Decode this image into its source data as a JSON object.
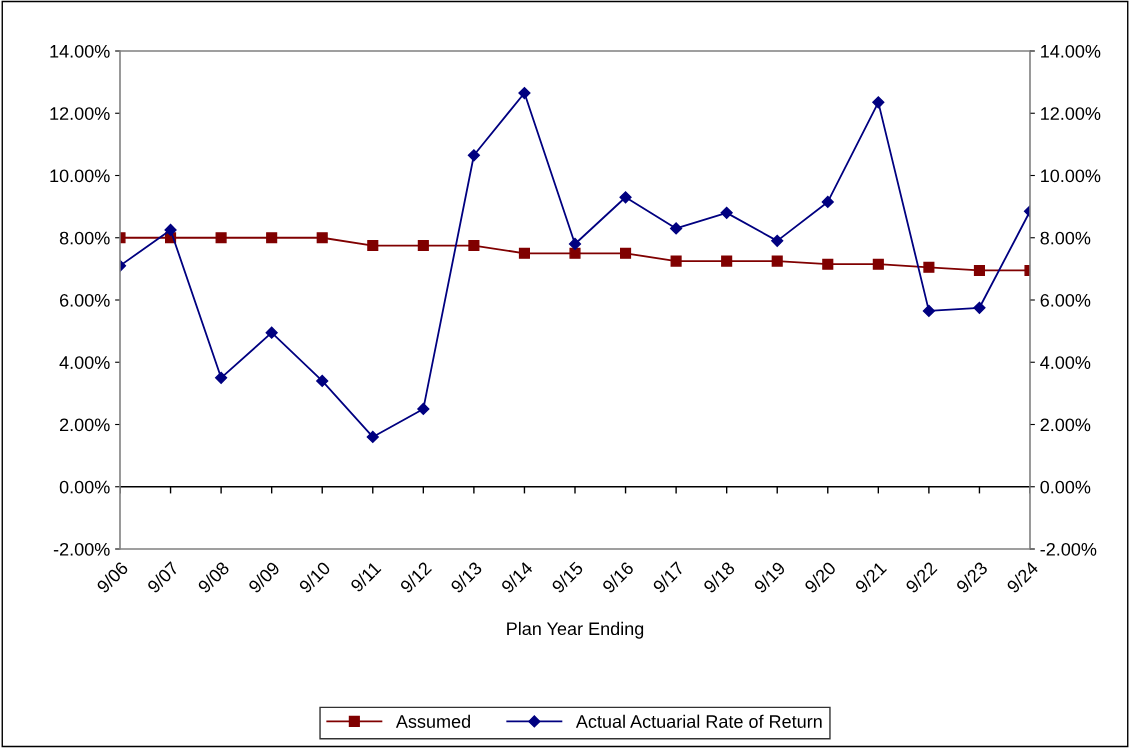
{
  "chart_data": {
    "type": "line",
    "xlabel": "Plan Year Ending",
    "categories": [
      "9/06",
      "9/07",
      "9/08",
      "9/09",
      "9/10",
      "9/11",
      "9/12",
      "9/13",
      "9/14",
      "9/15",
      "9/16",
      "9/17",
      "9/18",
      "9/19",
      "9/20",
      "9/21",
      "9/22",
      "9/23",
      "9/24"
    ],
    "series": [
      {
        "name": "Assumed",
        "color": "#800000",
        "marker": "square",
        "values": [
          8.0,
          8.0,
          8.0,
          8.0,
          8.0,
          7.75,
          7.75,
          7.75,
          7.5,
          7.5,
          7.5,
          7.25,
          7.25,
          7.25,
          7.15,
          7.15,
          7.05,
          6.95,
          6.95
        ]
      },
      {
        "name": "Actual Actuarial Rate of Return",
        "color": "#000080",
        "marker": "diamond",
        "values": [
          7.1,
          8.25,
          3.5,
          4.95,
          3.4,
          1.6,
          2.5,
          10.65,
          12.65,
          7.8,
          9.3,
          8.3,
          8.8,
          7.9,
          9.15,
          12.35,
          5.65,
          5.75,
          8.85
        ]
      }
    ],
    "ylim": [
      -2,
      14
    ],
    "yticks": [
      {
        "value": -2,
        "label": "-2.00%"
      },
      {
        "value": 0,
        "label": "0.00%"
      },
      {
        "value": 2,
        "label": "2.00%"
      },
      {
        "value": 4,
        "label": "4.00%"
      },
      {
        "value": 6,
        "label": "6.00%"
      },
      {
        "value": 8,
        "label": "8.00%"
      },
      {
        "value": 10,
        "label": "10.00%"
      },
      {
        "value": 12,
        "label": "12.00%"
      },
      {
        "value": 14,
        "label": "14.00%"
      }
    ],
    "y2lim": [
      -2,
      14
    ],
    "y2ticks": [
      {
        "value": -2,
        "label": "-2.00%"
      },
      {
        "value": 0,
        "label": "0.00%"
      },
      {
        "value": 2,
        "label": "2.00%"
      },
      {
        "value": 4,
        "label": "4.00%"
      },
      {
        "value": 6,
        "label": "6.00%"
      },
      {
        "value": 8,
        "label": "8.00%"
      },
      {
        "value": 10,
        "label": "10.00%"
      },
      {
        "value": 12,
        "label": "12.00%"
      },
      {
        "value": 14,
        "label": "14.00%"
      }
    ],
    "ref_lines": [
      {
        "axis": "y",
        "value": 0,
        "color": "#000000"
      }
    ],
    "grid": false,
    "legend": "bottom",
    "line_style": "solid"
  }
}
